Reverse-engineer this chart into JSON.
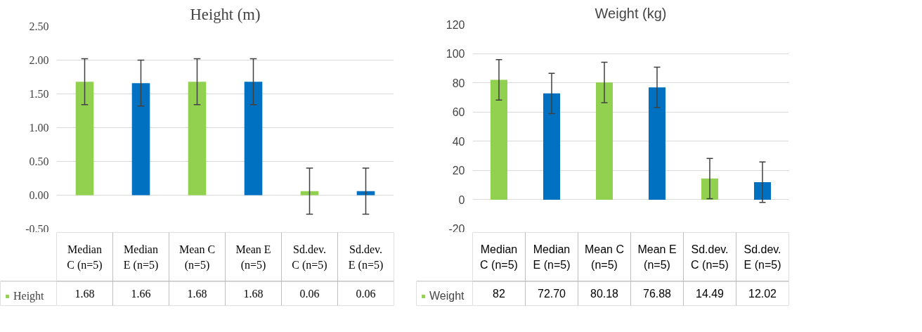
{
  "chart_data": [
    {
      "type": "bar",
      "title": "Height (m)",
      "categories": [
        "Median C (n=5)",
        "Median E (n=5)",
        "Mean C (n=5)",
        "Mean E (n=5)",
        "Sd.dev. C (n=5)",
        "Sd.dev. E (n=5)"
      ],
      "series": [
        {
          "name": "Height",
          "colors": [
            "#92d050",
            "#0070c0",
            "#92d050",
            "#0070c0",
            "#92d050",
            "#0070c0"
          ],
          "values": [
            1.68,
            1.66,
            1.68,
            1.68,
            0.06,
            0.06
          ],
          "errors": [
            0.34,
            0.34,
            0.34,
            0.34,
            0.34,
            0.34
          ],
          "value_labels": [
            "1.68",
            "1.66",
            "1.68",
            "1.68",
            "0.06",
            "0.06"
          ]
        }
      ],
      "ylim": [
        -0.5,
        2.5
      ],
      "yticks": [
        {
          "value": -0.5,
          "label": "-0.50"
        },
        {
          "value": 0,
          "label": "0.00"
        },
        {
          "value": 0.5,
          "label": "0.50"
        },
        {
          "value": 1,
          "label": "1.00"
        },
        {
          "value": 1.5,
          "label": "1.50"
        },
        {
          "value": 2,
          "label": "2.00"
        },
        {
          "value": 2.5,
          "label": "2.50"
        }
      ],
      "grid": "y",
      "legend": "bottom"
    },
    {
      "type": "bar",
      "title": "Weight (kg)",
      "categories": [
        "Median C (n=5)",
        "Median E (n=5)",
        "Mean C (n=5)",
        "Mean E (n=5)",
        "Sd.dev. C (n=5)",
        "Sd.dev. E (n=5)"
      ],
      "series": [
        {
          "name": "Weight",
          "colors": [
            "#92d050",
            "#0070c0",
            "#92d050",
            "#0070c0",
            "#92d050",
            "#0070c0"
          ],
          "values": [
            82,
            72.7,
            80.18,
            76.88,
            14.49,
            12.02
          ],
          "errors": [
            13.8,
            13.8,
            13.8,
            13.8,
            13.8,
            13.8
          ],
          "value_labels": [
            "82",
            "72.70",
            "80.18",
            "76.88",
            "14.49",
            "12.02"
          ]
        }
      ],
      "ylim": [
        -20,
        120
      ],
      "yticks": [
        -20,
        0,
        20,
        40,
        60,
        80,
        100,
        120
      ],
      "grid": "y",
      "legend": "bottom"
    }
  ]
}
